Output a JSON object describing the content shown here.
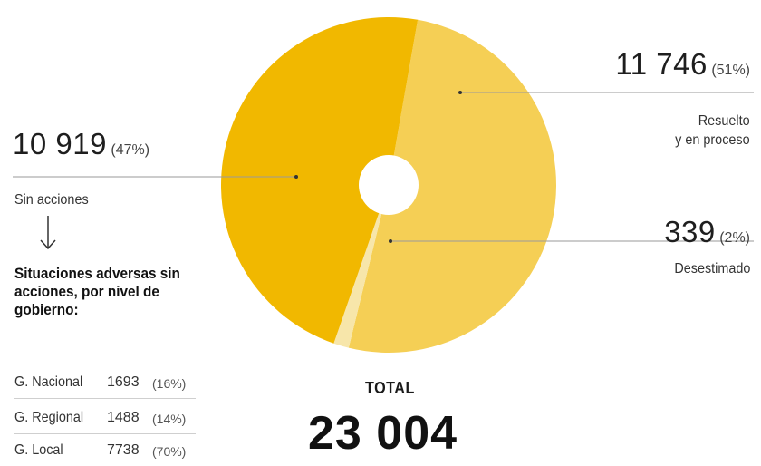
{
  "chart_data": {
    "type": "pie",
    "slices": [
      {
        "label": "Resuelto y en proceso",
        "value": 11746,
        "value_text": "11 746",
        "percent_text": "(51%)",
        "color": "#f5cf55"
      },
      {
        "label": "Desestimado",
        "value": 339,
        "value_text": "339",
        "percent_text": "(2%)",
        "color": "#f7e6aa"
      },
      {
        "label": "Sin acciones",
        "value": 10919,
        "value_text": "10 919",
        "percent_text": "(47%)",
        "color": "#f1b800"
      }
    ],
    "total_label": "TOTAL",
    "total_value": "23 004"
  },
  "labels": {
    "resuelto_line1": "Resuelto",
    "resuelto_line2": "y en proceso",
    "desestimado": "Desestimado",
    "sin_acciones": "Sin acciones",
    "arrow": "↓"
  },
  "breakdown": {
    "heading": "Situaciones adversas sin acciones, por nivel de gobierno:",
    "rows": [
      {
        "name": "G. Nacional",
        "value": "1693",
        "percent": "(16%)"
      },
      {
        "name": "G. Regional",
        "value": "1488",
        "percent": "(14%)"
      },
      {
        "name": "G. Local",
        "value": "7738",
        "percent": "(70%)"
      }
    ]
  },
  "colors": {
    "line": "#9a9a9a",
    "hole": "#ffffff",
    "accent_dark": "#f1b800",
    "accent_light": "#f5cf55"
  }
}
